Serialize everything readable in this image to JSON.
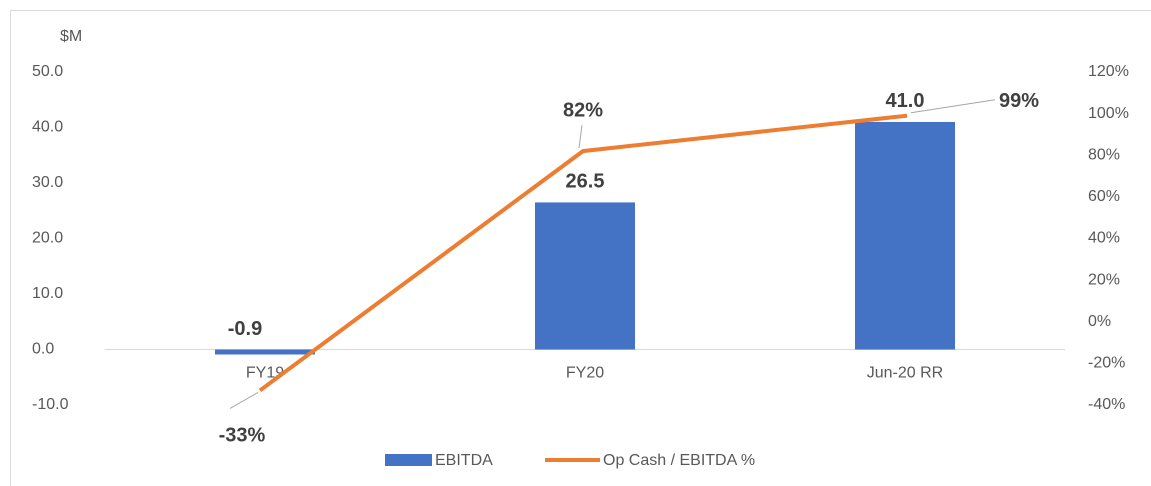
{
  "chart_data": {
    "type": "bar-line",
    "y_axis_label": "$M",
    "categories": [
      "FY19",
      "FY20",
      "Jun-20 RR"
    ],
    "series": [
      {
        "name": "EBITDA",
        "type": "bar",
        "color": "#4472c4",
        "values": [
          -0.9,
          26.5,
          41
        ],
        "value_labels": [
          "-0.9",
          "26.5",
          "41.0"
        ]
      },
      {
        "name": "Op Cash / EBITDA %",
        "type": "line",
        "axis": "y2",
        "color": "#ed7d31",
        "values": [
          -33,
          82,
          99
        ],
        "value_labels": [
          "-33%",
          "82%",
          "99%"
        ]
      }
    ],
    "ylim": [
      -10,
      50
    ],
    "yticks": [
      {
        "value": -10,
        "label": "-10.0"
      },
      {
        "value": 0,
        "label": "0.0"
      },
      {
        "value": 10,
        "label": "10.0"
      },
      {
        "value": 20,
        "label": "20.0"
      },
      {
        "value": 30,
        "label": "30.0"
      },
      {
        "value": 40,
        "label": "40.0"
      },
      {
        "value": 50,
        "label": "50.0"
      }
    ],
    "y2lim": [
      -40,
      120
    ],
    "y2ticks": [
      {
        "value": -40,
        "label": "-40%"
      },
      {
        "value": -20,
        "label": "-20%"
      },
      {
        "value": 0,
        "label": "0%"
      },
      {
        "value": 20,
        "label": "20%"
      },
      {
        "value": 40,
        "label": "40%"
      },
      {
        "value": 60,
        "label": "60%"
      },
      {
        "value": 80,
        "label": "80%"
      },
      {
        "value": 100,
        "label": "100%"
      },
      {
        "value": 120,
        "label": "120%"
      }
    ],
    "grid": false,
    "legend": "bottom"
  }
}
